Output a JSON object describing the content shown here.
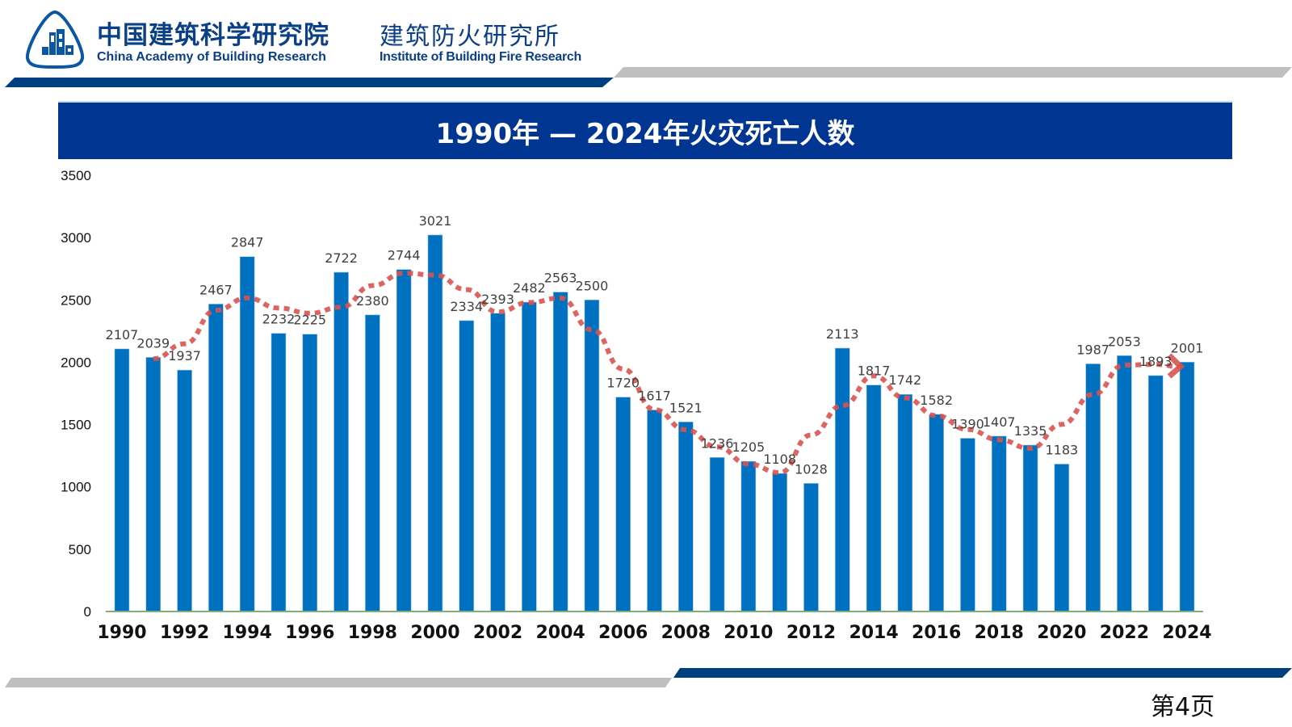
{
  "header": {
    "logo_icon": "cabr-logo-icon",
    "org_name_cn": "中国建筑科学研究院",
    "org_name_en": "China Academy of Building Research",
    "institute_cn": "建筑防火研究所",
    "institute_en": "Institute of Building Fire Research"
  },
  "colors": {
    "brand_blue": "#003591",
    "bar_blue": "#0070c0",
    "trend_red": "#d9534f",
    "deco_gray": "#bfbfbf",
    "deco_navy": "#003f7f",
    "axis_green": "#7faf7f"
  },
  "footer": {
    "page_label": "第4页"
  },
  "chart_data": {
    "type": "bar",
    "title": "1990年 — 2024年火灾死亡人数",
    "xlabel": "",
    "ylabel": "",
    "ylim": [
      0,
      3500
    ],
    "yticks": [
      0,
      500,
      1000,
      1500,
      2000,
      2500,
      3000,
      3500
    ],
    "xtick_labels": [
      "1990",
      "1992",
      "1994",
      "1996",
      "1998",
      "2000",
      "2002",
      "2004",
      "2006",
      "2008",
      "2010",
      "2012",
      "2014",
      "2016",
      "2018",
      "2020",
      "2022",
      "2024"
    ],
    "categories": [
      "1990",
      "1991",
      "1992",
      "1993",
      "1994",
      "1995",
      "1996",
      "1997",
      "1998",
      "1999",
      "2000",
      "2001",
      "2002",
      "2003",
      "2004",
      "2005",
      "2006",
      "2007",
      "2008",
      "2009",
      "2010",
      "2011",
      "2012",
      "2013",
      "2014",
      "2015",
      "2016",
      "2017",
      "2018",
      "2019",
      "2020",
      "2021",
      "2022",
      "2023",
      "2024"
    ],
    "values": [
      2107,
      2039,
      1937,
      2467,
      2847,
      2232,
      2225,
      2722,
      2380,
      2744,
      3021,
      2334,
      2393,
      2482,
      2563,
      2500,
      1720,
      1617,
      1521,
      1236,
      1205,
      1108,
      1028,
      2113,
      1817,
      1742,
      1582,
      1390,
      1407,
      1335,
      1183,
      1987,
      2053,
      1893,
      2001
    ],
    "data_labels": true,
    "grid": false,
    "legend": "none",
    "annotations": [
      {
        "type": "trend-line",
        "style": "dotted",
        "description": "smoothed dotted red trend line ending with an arrowhead at 2024"
      }
    ]
  }
}
